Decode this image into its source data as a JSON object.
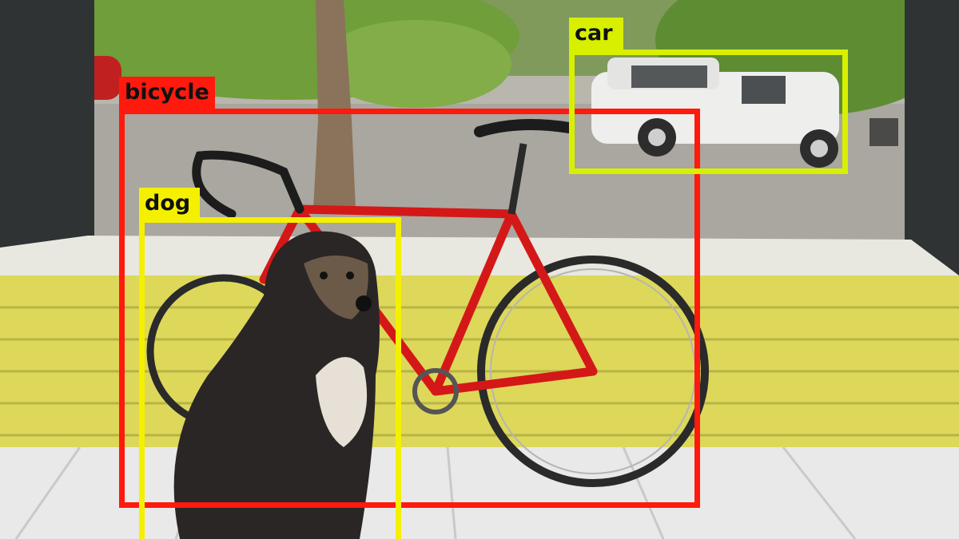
{
  "detections": [
    {
      "id": "bicycle",
      "label": "bicycle",
      "box_color": "#ff1a0d",
      "label_bg": "#ff1a0d",
      "label_color": "#111111"
    },
    {
      "id": "dog",
      "label": "dog",
      "box_color": "#f5f000",
      "label_bg": "#f5f000",
      "label_color": "#111111"
    },
    {
      "id": "car",
      "label": "car",
      "box_color": "#d8f000",
      "label_bg": "#d8f000",
      "label_color": "#111111"
    }
  ]
}
